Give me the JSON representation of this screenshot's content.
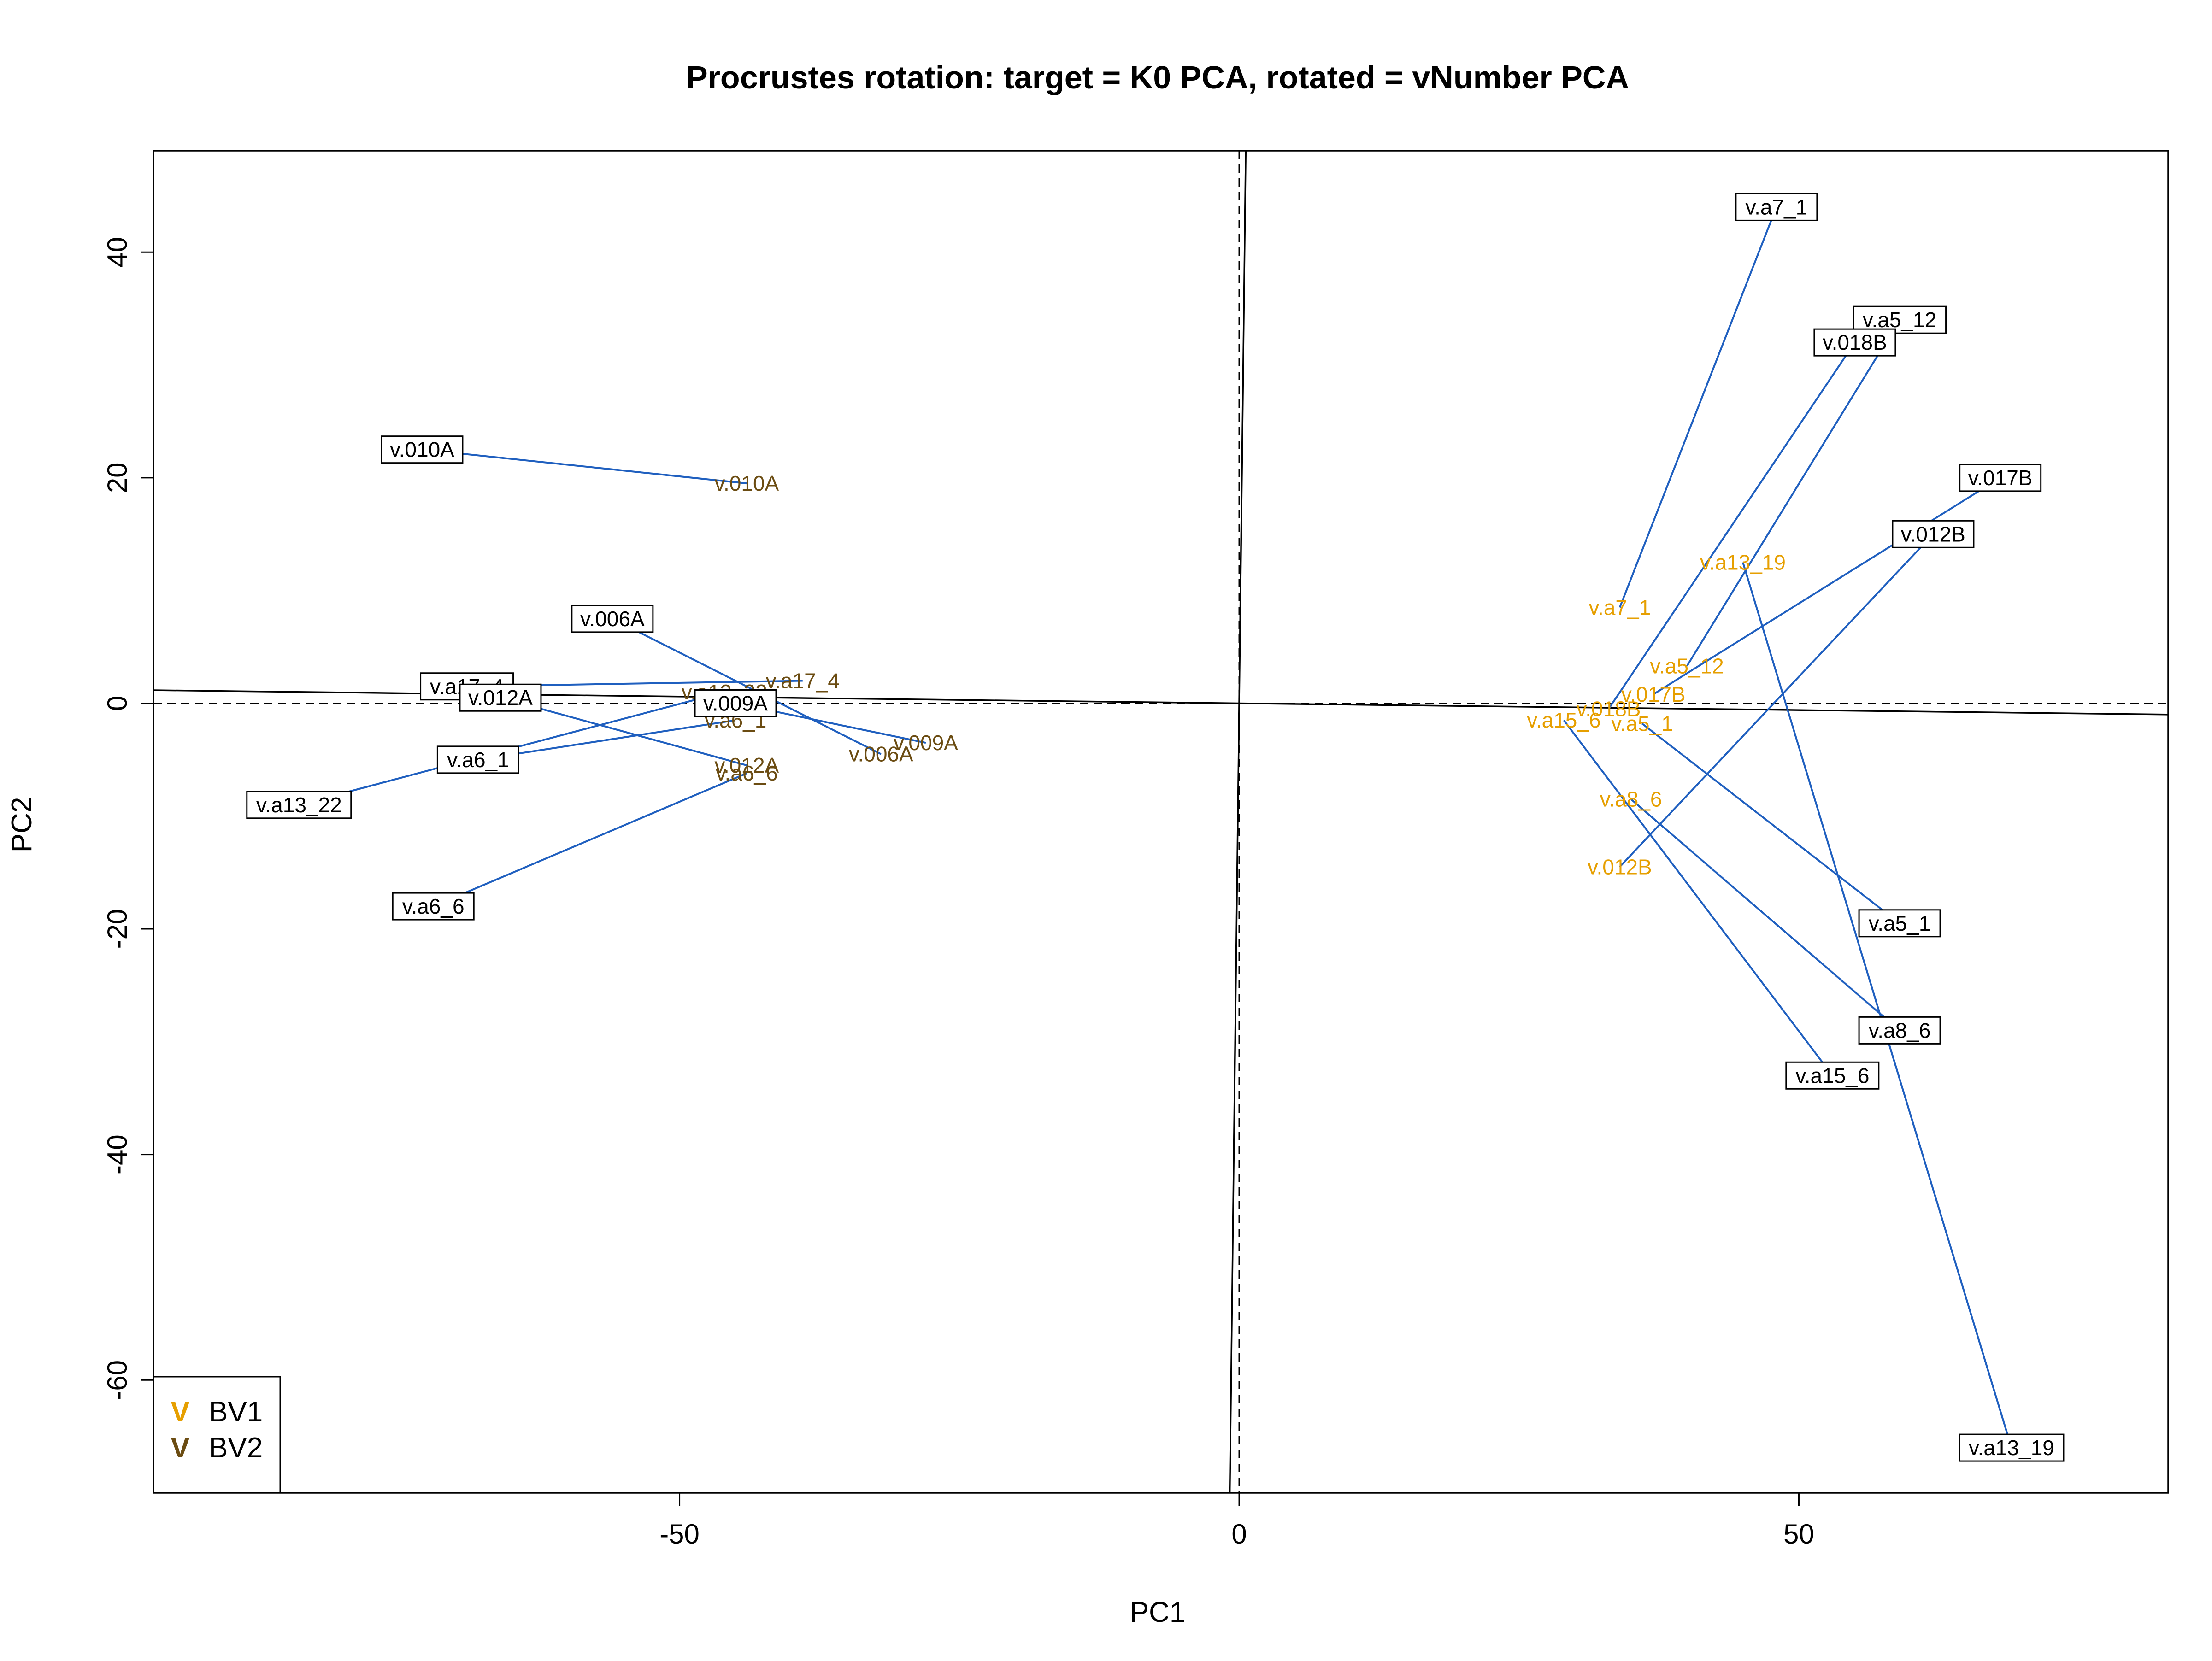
{
  "chart_data": {
    "type": "scatter",
    "title": "Procrustes rotation: target = K0 PCA, rotated = vNumber PCA",
    "xlabel": "PC1",
    "ylabel": "PC2",
    "xlim": [
      -97,
      83
    ],
    "ylim": [
      -70,
      49
    ],
    "x_ticks": [
      -50,
      0,
      50
    ],
    "x_tick_labels": [
      "-50",
      "0",
      "50"
    ],
    "y_ticks": [
      -60,
      -40,
      -20,
      0,
      20,
      40
    ],
    "y_tick_labels": [
      "-60",
      "-40",
      "-20",
      "0",
      "20",
      "40"
    ],
    "grid": false,
    "legend": {
      "position": "bottom-left",
      "symbol": "V",
      "entries": [
        {
          "label": "BV1",
          "color": "#e69f00"
        },
        {
          "label": "BV2",
          "color": "#6b4c12"
        }
      ]
    },
    "colors": {
      "arrow": "#1f5fbf",
      "BV1": "#e69f00",
      "BV2": "#6b4c12",
      "rotated_axis": "#000000"
    },
    "rotated_axis_slope": -0.012,
    "target_points": [
      {
        "label": "v.010A",
        "x": -73,
        "y": 22.5
      },
      {
        "label": "v.006A",
        "x": -56,
        "y": 7.5
      },
      {
        "label": "v.a17_4",
        "x": -69,
        "y": 1.5
      },
      {
        "label": "v.012A",
        "x": -66,
        "y": 0.5
      },
      {
        "label": "v.009A",
        "x": -45,
        "y": 0
      },
      {
        "label": "v.a6_1",
        "x": -68,
        "y": -5
      },
      {
        "label": "v.a13_22",
        "x": -84,
        "y": -9
      },
      {
        "label": "v.a6_6",
        "x": -72,
        "y": -18
      },
      {
        "label": "v.a7_1",
        "x": 48,
        "y": 44
      },
      {
        "label": "v.a5_12",
        "x": 59,
        "y": 34
      },
      {
        "label": "v.018B",
        "x": 55,
        "y": 32
      },
      {
        "label": "v.017B",
        "x": 68,
        "y": 20
      },
      {
        "label": "v.012B",
        "x": 62,
        "y": 15
      },
      {
        "label": "v.a5_1",
        "x": 59,
        "y": -19.5
      },
      {
        "label": "v.a8_6",
        "x": 59,
        "y": -29
      },
      {
        "label": "v.a15_6",
        "x": 53,
        "y": -33
      },
      {
        "label": "v.a13_19",
        "x": 69,
        "y": -66
      }
    ],
    "rotated_points": [
      {
        "label": "v.010A",
        "group": "BV2",
        "x": -44,
        "y": 19.5
      },
      {
        "label": "v.006A",
        "group": "BV2",
        "x": -32,
        "y": -4.5
      },
      {
        "label": "v.a17_4",
        "group": "BV2",
        "x": -39,
        "y": 2
      },
      {
        "label": "v.a13_22",
        "group": "BV2",
        "x": -46,
        "y": 1
      },
      {
        "label": "v.009A",
        "group": "BV2",
        "x": -28,
        "y": -3.5
      },
      {
        "label": "v.a6_1",
        "group": "BV2",
        "x": -45,
        "y": -1.5
      },
      {
        "label": "v.012A",
        "group": "BV2",
        "x": -44,
        "y": -5.5
      },
      {
        "label": "v.a6_6",
        "group": "BV2",
        "x": -44,
        "y": -6.2
      },
      {
        "label": "v.a7_1",
        "group": "BV1",
        "x": 34,
        "y": 8.5
      },
      {
        "label": "v.a13_19",
        "group": "BV1",
        "x": 45,
        "y": 12.5
      },
      {
        "label": "v.a5_12",
        "group": "BV1",
        "x": 40,
        "y": 3.3
      },
      {
        "label": "v.017B",
        "group": "BV1",
        "x": 37,
        "y": 0.8
      },
      {
        "label": "v.018B",
        "group": "BV1",
        "x": 33,
        "y": -0.5
      },
      {
        "label": "v.a15_6",
        "group": "BV1",
        "x": 29,
        "y": -1.5
      },
      {
        "label": "v.a5_1",
        "group": "BV1",
        "x": 36,
        "y": -1.8
      },
      {
        "label": "v.a8_6",
        "group": "BV1",
        "x": 35,
        "y": -8.5
      },
      {
        "label": "v.012B",
        "group": "BV1",
        "x": 34,
        "y": -14.5
      }
    ]
  }
}
